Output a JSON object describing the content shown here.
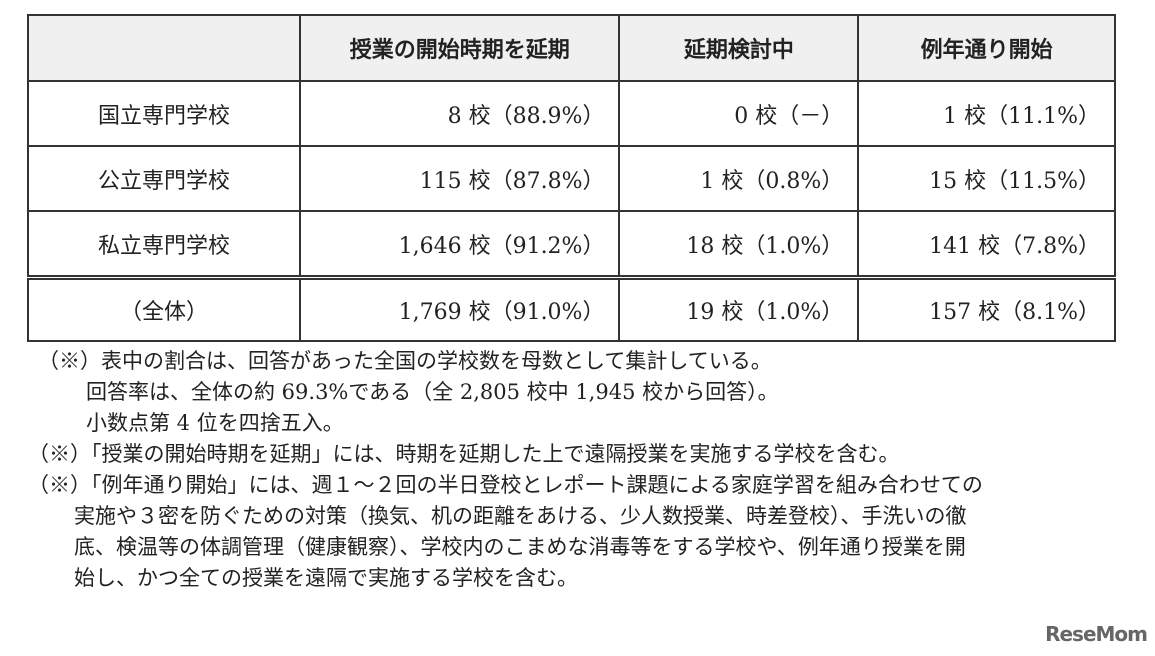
{
  "table": {
    "headers": [
      "",
      "授業の開始時期を延期",
      "延期検討中",
      "例年通り開始"
    ],
    "rows": [
      {
        "label": "国立専門学校",
        "cells": [
          "8 校（88.9%）",
          "0 校（－）",
          "1 校（11.1%）"
        ]
      },
      {
        "label": "公立専門学校",
        "cells": [
          "115 校（87.8%）",
          "1 校（0.8%）",
          "15 校（11.5%）"
        ]
      },
      {
        "label": "私立専門学校",
        "cells": [
          "1,646 校（91.2%）",
          "18 校（1.0%）",
          "141 校（7.8%）"
        ]
      }
    ],
    "total": {
      "label": "（全体）",
      "cells": [
        "1,769 校（91.0%）",
        "19 校（1.0%）",
        "157 校（8.1%）"
      ]
    }
  },
  "notes": {
    "n1": "（※）表中の割合は、回答があった全国の学校数を母数として集計している。",
    "n1b": "回答率は、全体の約 69.3%である（全 2,805 校中 1,945 校から回答）。",
    "n1c": "小数点第 4 位を四捨五入。",
    "n2": "（※）「授業の開始時期を延期」には、時期を延期した上で遠隔授業を実施する学校を含む。",
    "n3a": "（※）「例年通り開始」には、週１～２回の半日登校とレポート課題による家庭学習を組み合わせての",
    "n3b": "実施や３密を防ぐための対策（換気、机の距離をあける、少人数授業、時差登校）、手洗いの徹",
    "n3c": "底、検温等の体調管理（健康観察）、学校内のこまめな消毒等をする学校や、例年通り授業を開",
    "n3d": "始し、かつ全ての授業を遠隔で実施する学校を含む。"
  },
  "logo": "ReseMom"
}
